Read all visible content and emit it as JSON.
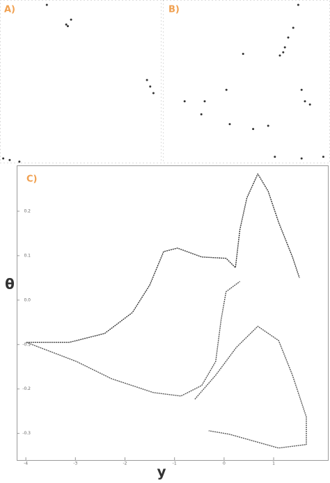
{
  "chart_data": [
    {
      "type": "scatter",
      "title": "A)",
      "color": "#333333",
      "xlim": [
        0,
        1
      ],
      "ylim": [
        0,
        1
      ],
      "x": [
        0.29,
        0.41,
        0.44,
        0.42,
        0.91,
        0.93,
        0.95,
        0.02,
        0.06,
        0.12
      ],
      "values": [
        0.97,
        0.85,
        0.88,
        0.84,
        0.51,
        0.47,
        0.43,
        0.03,
        0.02,
        0.01
      ]
    },
    {
      "type": "scatter",
      "title": "B)",
      "color": "#333333",
      "xlim": [
        0,
        1
      ],
      "ylim": [
        0,
        1
      ],
      "x": [
        0.81,
        0.78,
        0.75,
        0.72,
        0.73,
        0.7,
        0.48,
        0.38,
        0.25,
        0.13,
        0.23,
        0.4,
        0.54,
        0.63,
        0.83,
        0.85,
        0.88,
        0.67,
        0.83,
        0.96
      ],
      "values": [
        0.97,
        0.83,
        0.77,
        0.68,
        0.71,
        0.66,
        0.67,
        0.45,
        0.38,
        0.38,
        0.3,
        0.24,
        0.21,
        0.23,
        0.45,
        0.38,
        0.36,
        0.04,
        0.03,
        0.04
      ]
    },
    {
      "type": "line",
      "title": "C)",
      "xlabel": "y",
      "ylabel": "θ",
      "xlim": [
        -4.1,
        1.8
      ],
      "ylim": [
        -0.36,
        0.3
      ],
      "xticks": [
        -4,
        -3,
        -2,
        -1,
        0,
        1
      ],
      "yticks": [
        -0.3,
        -0.2,
        -0.1,
        {
          "value": 0,
          "label": "0.0"
        },
        0.1,
        0.2
      ],
      "series": [
        {
          "color": "#333333",
          "x": [
            -3.99,
            -3.12,
            -2.41,
            -1.85,
            -1.5,
            -1.22,
            -0.94,
            -0.45,
            0.04,
            0.23,
            0.32,
            0.46,
            0.68,
            0.89,
            1.1,
            1.38,
            1.52
          ],
          "values": [
            -0.095,
            -0.095,
            -0.075,
            -0.028,
            0.034,
            0.109,
            0.117,
            0.097,
            0.094,
            0.073,
            0.159,
            0.23,
            0.284,
            0.245,
            0.175,
            0.097,
            0.05
          ]
        },
        {
          "color": "#555555",
          "x": [
            -3.99,
            -2.98,
            -2.27,
            -1.43,
            -0.87,
            -0.45,
            -0.17,
            -0.06,
            0.04,
            0.32
          ],
          "values": [
            -0.095,
            -0.138,
            -0.177,
            -0.208,
            -0.216,
            -0.192,
            -0.138,
            -0.044,
            0.019,
            0.042
          ]
        },
        {
          "color": "#555555",
          "x": [
            -0.59,
            -0.17,
            0.25,
            0.68,
            1.1,
            1.38,
            1.66,
            1.66,
            1.1,
            0.11,
            -0.31
          ],
          "values": [
            -0.223,
            -0.169,
            -0.106,
            -0.059,
            -0.091,
            -0.169,
            -0.263,
            -0.325,
            -0.333,
            -0.302,
            -0.294
          ]
        }
      ]
    }
  ]
}
